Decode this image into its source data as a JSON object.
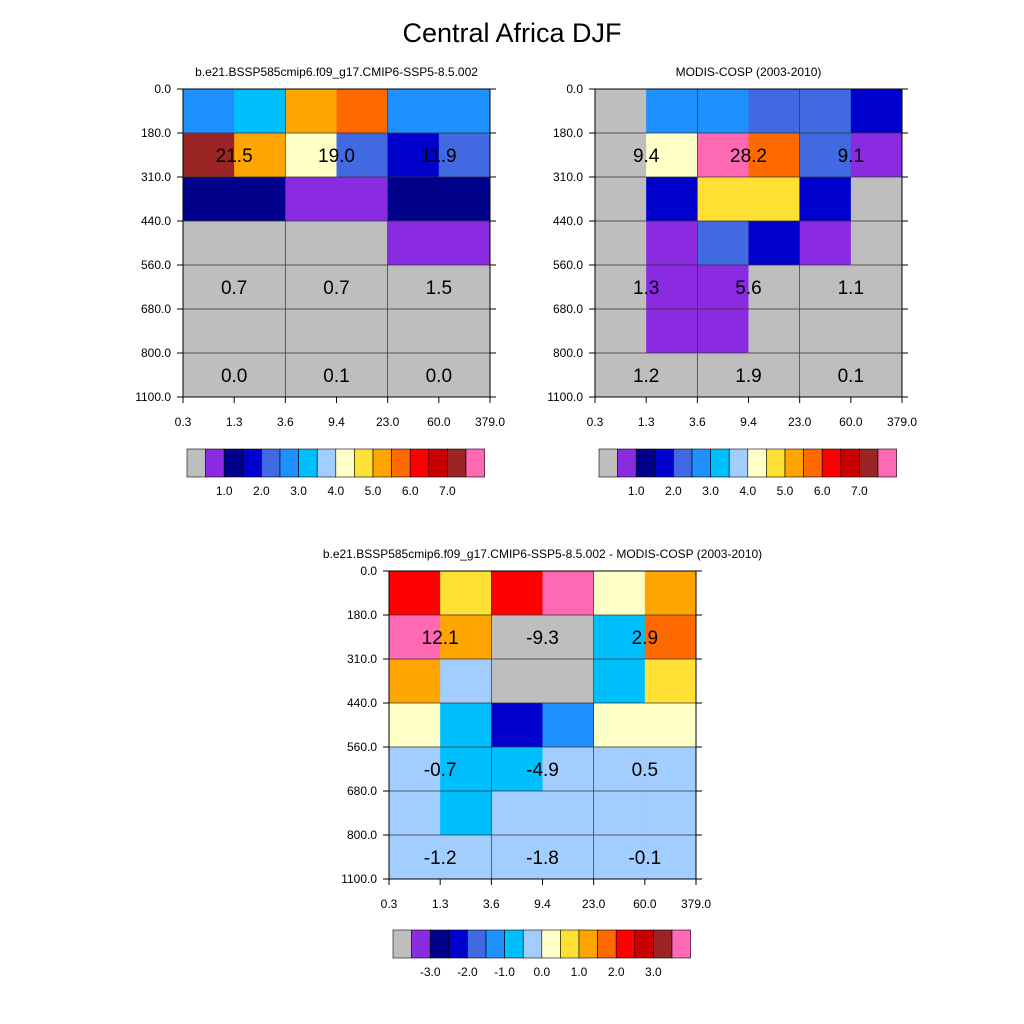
{
  "figure": {
    "title": "Central Africa DJF"
  },
  "palette": [
    "#bebebe",
    "#8a2be2",
    "#00008b",
    "#0000cd",
    "#4169e1",
    "#1e90ff",
    "#00bfff",
    "#a2cdff",
    "#ffffc8",
    "#ffe135",
    "#ffa500",
    "#ff6a00",
    "#ff0000",
    "#c80000",
    "#9b2424",
    "#ff69b4"
  ],
  "chart_data": [
    {
      "type": "heatmap",
      "title": "b.e21.BSSP585cmip6.f09_g17.CMIP6-SSP5-8.5.002",
      "x_ticks": [
        "0.3",
        "1.3",
        "3.6",
        "9.4",
        "23.0",
        "60.0",
        "379.0"
      ],
      "y_ticks": [
        "0.0",
        "180.0",
        "310.0",
        "440.0",
        "560.0",
        "680.0",
        "800.0",
        "1100.0"
      ],
      "cells": [
        [
          5,
          6,
          10,
          11,
          5,
          5
        ],
        [
          14,
          10,
          8,
          4,
          3,
          4
        ],
        [
          2,
          2,
          1,
          1,
          2,
          2
        ],
        [
          0,
          0,
          0,
          0,
          1,
          1
        ],
        [
          0,
          0,
          0,
          0,
          0,
          0
        ],
        [
          0,
          0,
          0,
          0,
          0,
          0
        ],
        [
          0,
          0,
          0,
          0,
          0,
          0
        ]
      ],
      "labels": [
        {
          "text": "21.5",
          "col": 0,
          "row": 1
        },
        {
          "text": "19.0",
          "col": 1,
          "row": 1
        },
        {
          "text": "11.9",
          "col": 2,
          "row": 1
        },
        {
          "text": "0.7",
          "col": 0,
          "row": 4
        },
        {
          "text": "0.7",
          "col": 1,
          "row": 4
        },
        {
          "text": "1.5",
          "col": 2,
          "row": 4
        },
        {
          "text": "0.0",
          "col": 0,
          "row": 6
        },
        {
          "text": "0.1",
          "col": 1,
          "row": 6
        },
        {
          "text": "0.0",
          "col": 2,
          "row": 6
        }
      ],
      "colorbar_labels": [
        "1.0",
        "2.0",
        "3.0",
        "4.0",
        "5.0",
        "6.0",
        "7.0"
      ]
    },
    {
      "type": "heatmap",
      "title": "MODIS-COSP (2003-2010)",
      "x_ticks": [
        "0.3",
        "1.3",
        "3.6",
        "9.4",
        "23.0",
        "60.0",
        "379.0"
      ],
      "y_ticks": [
        "0.0",
        "180.0",
        "310.0",
        "440.0",
        "560.0",
        "680.0",
        "800.0",
        "1100.0"
      ],
      "cells": [
        [
          0,
          5,
          5,
          4,
          4,
          3
        ],
        [
          0,
          8,
          15,
          11,
          4,
          1
        ],
        [
          0,
          3,
          9,
          9,
          3,
          0
        ],
        [
          0,
          1,
          4,
          3,
          1,
          0
        ],
        [
          0,
          1,
          1,
          0,
          0,
          0
        ],
        [
          0,
          1,
          1,
          0,
          0,
          0
        ],
        [
          0,
          0,
          0,
          0,
          0,
          0
        ]
      ],
      "labels": [
        {
          "text": "9.4",
          "col": 0,
          "row": 1
        },
        {
          "text": "28.2",
          "col": 1,
          "row": 1
        },
        {
          "text": "9.1",
          "col": 2,
          "row": 1
        },
        {
          "text": "1.3",
          "col": 0,
          "row": 4
        },
        {
          "text": "5.6",
          "col": 1,
          "row": 4
        },
        {
          "text": "1.1",
          "col": 2,
          "row": 4
        },
        {
          "text": "1.2",
          "col": 0,
          "row": 6
        },
        {
          "text": "1.9",
          "col": 1,
          "row": 6
        },
        {
          "text": "0.1",
          "col": 2,
          "row": 6
        }
      ],
      "colorbar_labels": [
        "1.0",
        "2.0",
        "3.0",
        "4.0",
        "5.0",
        "6.0",
        "7.0"
      ]
    },
    {
      "type": "heatmap",
      "title": "b.e21.BSSP585cmip6.f09_g17.CMIP6-SSP5-8.5.002 - MODIS-COSP (2003-2010)",
      "x_ticks": [
        "0.3",
        "1.3",
        "3.6",
        "9.4",
        "23.0",
        "60.0",
        "379.0"
      ],
      "y_ticks": [
        "0.0",
        "180.0",
        "310.0",
        "440.0",
        "560.0",
        "680.0",
        "800.0",
        "1100.0"
      ],
      "cells": [
        [
          12,
          9,
          12,
          15,
          8,
          10
        ],
        [
          15,
          10,
          0,
          0,
          6,
          11
        ],
        [
          10,
          7,
          0,
          0,
          6,
          9
        ],
        [
          8,
          6,
          3,
          5,
          8,
          8
        ],
        [
          7,
          6,
          6,
          7,
          7,
          7
        ],
        [
          7,
          6,
          7,
          7,
          7,
          7
        ],
        [
          7,
          7,
          7,
          7,
          7,
          7
        ]
      ],
      "labels": [
        {
          "text": "12.1",
          "col": 0,
          "row": 1
        },
        {
          "text": "-9.3",
          "col": 1,
          "row": 1
        },
        {
          "text": "2.9",
          "col": 2,
          "row": 1
        },
        {
          "text": "-0.7",
          "col": 0,
          "row": 4
        },
        {
          "text": "-4.9",
          "col": 1,
          "row": 4
        },
        {
          "text": "0.5",
          "col": 2,
          "row": 4
        },
        {
          "text": "-1.2",
          "col": 0,
          "row": 6
        },
        {
          "text": "-1.8",
          "col": 1,
          "row": 6
        },
        {
          "text": "-0.1",
          "col": 2,
          "row": 6
        }
      ],
      "colorbar_labels": [
        "-3.0",
        "-2.0",
        "-1.0",
        "0.0",
        "1.0",
        "2.0",
        "3.0"
      ]
    }
  ]
}
